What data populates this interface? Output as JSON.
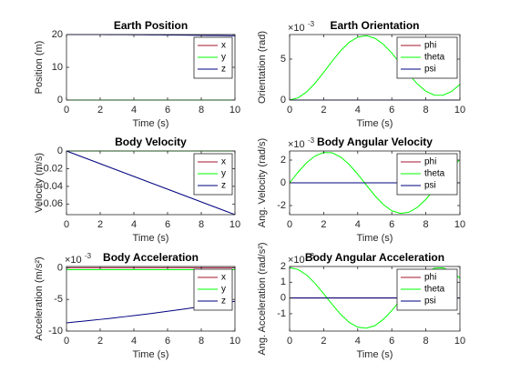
{
  "chart_data": [
    {
      "type": "line",
      "title": "Earth Position",
      "xlabel": "Time (s)",
      "ylabel": "Position (m)",
      "x": [
        0,
        0.5,
        1,
        1.5,
        2,
        2.5,
        3,
        3.5,
        4,
        4.5,
        5,
        5.5,
        6,
        6.5,
        7,
        7.5,
        8,
        8.5,
        9,
        9.5,
        10
      ],
      "xlim": [
        0,
        10
      ],
      "xticks": [
        0,
        2,
        4,
        6,
        8,
        10
      ],
      "ylim": [
        0,
        20
      ],
      "yticks": [
        0,
        10,
        20
      ],
      "legend": "northeast",
      "series": [
        {
          "name": "x",
          "color": "#a2142f",
          "values": [
            0,
            0,
            0,
            0,
            0,
            0,
            0,
            0,
            0,
            0,
            0,
            0,
            0,
            0,
            0,
            0,
            0,
            0,
            0,
            0,
            0
          ]
        },
        {
          "name": "y",
          "color": "#00ff00",
          "values": [
            0,
            0,
            0,
            0,
            0,
            0,
            0,
            0,
            0,
            0,
            0,
            0,
            0,
            0,
            0,
            0,
            0,
            0,
            0,
            0,
            0
          ]
        },
        {
          "name": "z",
          "color": "#000080",
          "values": [
            20,
            19.999,
            19.996,
            19.992,
            19.986,
            19.978,
            19.968,
            19.956,
            19.942,
            19.927,
            19.91,
            19.891,
            19.87,
            19.848,
            19.824,
            19.798,
            19.77,
            19.74,
            19.708,
            19.675,
            19.64
          ]
        }
      ]
    },
    {
      "type": "line",
      "title": "Earth Orientation",
      "xlabel": "Time (s)",
      "ylabel": "Orientation (rad)",
      "y_multiplier": {
        "base": "×10",
        "exponent": "-3"
      },
      "x": [
        0,
        0.5,
        1,
        1.5,
        2,
        2.5,
        3,
        3.5,
        4,
        4.5,
        5,
        5.5,
        6,
        6.5,
        7,
        7.5,
        8,
        8.5,
        9,
        9.5,
        10
      ],
      "xlim": [
        0,
        10
      ],
      "xticks": [
        0,
        2,
        4,
        6,
        8,
        10
      ],
      "ylim": [
        0,
        0.008
      ],
      "yticks": [
        0,
        {
          "value": 0.005,
          "label": "5"
        }
      ],
      "legend": "northeast",
      "series": [
        {
          "name": "phi",
          "color": "#a2142f",
          "values": [
            0,
            0,
            0,
            0,
            0,
            0,
            0,
            0,
            0,
            0,
            0,
            0,
            0,
            0,
            0,
            0,
            0,
            0,
            0,
            0,
            0
          ]
        },
        {
          "name": "theta",
          "color": "#00ff00",
          "values": [
            0,
            0.00027,
            0.00099,
            0.00207,
            0.00338,
            0.00476,
            0.00603,
            0.00706,
            0.00768,
            0.00786,
            0.00756,
            0.00682,
            0.00574,
            0.00446,
            0.00315,
            0.00197,
            0.00108,
            0.0006,
            0.00059,
            0.00103,
            0.00191
          ]
        },
        {
          "name": "psi",
          "color": "#000080",
          "values": [
            0,
            0,
            0,
            0,
            0,
            0,
            0,
            0,
            0,
            0,
            0,
            0,
            0,
            0,
            0,
            0,
            0,
            0,
            0,
            0,
            0
          ]
        }
      ]
    },
    {
      "type": "line",
      "title": "Body Velocity",
      "xlabel": "Time (s)",
      "ylabel": "Velocity (m/s)",
      "x": [
        0,
        0.5,
        1,
        1.5,
        2,
        2.5,
        3,
        3.5,
        4,
        4.5,
        5,
        5.5,
        6,
        6.5,
        7,
        7.5,
        8,
        8.5,
        9,
        9.5,
        10
      ],
      "xlim": [
        0,
        10
      ],
      "xticks": [
        0,
        2,
        4,
        6,
        8,
        10
      ],
      "ylim": [
        -0.072,
        0
      ],
      "yticks": [
        -0.06,
        -0.04,
        -0.02,
        0
      ],
      "legend": "northeast",
      "series": [
        {
          "name": "x",
          "color": "#a2142f",
          "values": [
            0,
            0,
            0,
            0,
            0,
            0,
            0,
            0,
            0,
            0,
            0,
            0,
            0,
            0,
            0,
            0,
            0,
            0,
            0,
            0,
            0
          ]
        },
        {
          "name": "y",
          "color": "#00ff00",
          "values": [
            0,
            0,
            0,
            0,
            0,
            0,
            0,
            0,
            0,
            0,
            0,
            0,
            0,
            0,
            0,
            0,
            0,
            0,
            0,
            0,
            0
          ]
        },
        {
          "name": "z",
          "color": "#000080",
          "values": [
            0,
            -0.0036,
            -0.0072,
            -0.0108,
            -0.0144,
            -0.018,
            -0.0216,
            -0.0252,
            -0.0288,
            -0.0324,
            -0.036,
            -0.0396,
            -0.0432,
            -0.0468,
            -0.0504,
            -0.054,
            -0.0576,
            -0.0612,
            -0.0648,
            -0.0684,
            -0.072
          ]
        }
      ]
    },
    {
      "type": "line",
      "title": "Body Angular Velocity",
      "xlabel": "Time (s)",
      "ylabel": "Ang. Velocity (rad/s)",
      "y_multiplier": {
        "base": "×10",
        "exponent": "-3"
      },
      "x": [
        0,
        0.5,
        1,
        1.5,
        2,
        2.5,
        3,
        3.5,
        4,
        4.5,
        5,
        5.5,
        6,
        6.5,
        7,
        7.5,
        8,
        8.5,
        9,
        9.5,
        10
      ],
      "xlim": [
        0,
        10
      ],
      "xticks": [
        0,
        2,
        4,
        6,
        8,
        10
      ],
      "ylim": [
        -0.0028,
        0.0028
      ],
      "yticks": [
        {
          "value": -0.002,
          "label": "-2"
        },
        0,
        {
          "value": 0.002,
          "label": "2"
        }
      ],
      "legend": "northeast",
      "series": [
        {
          "name": "phi",
          "color": "#a2142f",
          "values": [
            0,
            0,
            0,
            0,
            0,
            0,
            0,
            0,
            0,
            0,
            0,
            0,
            0,
            0,
            0,
            0,
            0,
            0,
            0,
            0,
            0
          ]
        },
        {
          "name": "theta",
          "color": "#00ff00",
          "values": [
            0,
            0.00094,
            0.00177,
            0.00237,
            0.00267,
            0.00264,
            0.00227,
            0.00161,
            0.00076,
            -0.00019,
            -0.00112,
            -0.00191,
            -0.00246,
            -0.00269,
            -0.00259,
            -0.00216,
            -0.00146,
            -0.00058,
            0.00039,
            0.00129,
            0.00204
          ]
        },
        {
          "name": "psi",
          "color": "#000080",
          "values": [
            0,
            0,
            0,
            0,
            0,
            0,
            0,
            0,
            0,
            0,
            0,
            0,
            0,
            0,
            0,
            0,
            0,
            0,
            0,
            0,
            0
          ]
        }
      ]
    },
    {
      "type": "line",
      "title": "Body Acceleration",
      "xlabel": "Time (s)",
      "ylabel": "Acceleration (m/s²)",
      "y_multiplier": {
        "base": "×10",
        "exponent": "-3"
      },
      "x": [
        0,
        0.5,
        1,
        1.5,
        2,
        2.5,
        3,
        3.5,
        4,
        4.5,
        5,
        5.5,
        6,
        6.5,
        7,
        7.5,
        8,
        8.5,
        9,
        9.5,
        10
      ],
      "xlim": [
        0,
        10
      ],
      "xticks": [
        0,
        2,
        4,
        6,
        8,
        10
      ],
      "ylim": [
        -0.01,
        0.0002
      ],
      "yticks": [
        {
          "value": -0.01,
          "label": "-10"
        },
        {
          "value": -0.005,
          "label": "-5"
        },
        0
      ],
      "legend": "northeast",
      "series": [
        {
          "name": "x",
          "color": "#a2142f",
          "values": [
            0,
            0,
            0,
            0,
            0,
            0,
            0,
            0,
            0,
            0,
            0,
            0,
            0,
            0,
            0,
            0,
            0,
            0,
            0,
            0,
            0
          ]
        },
        {
          "name": "y",
          "color": "#00ff00",
          "values": [
            -0.0003,
            -0.0003,
            -0.0003,
            -0.0003,
            -0.0003,
            -0.0003,
            -0.0003,
            -0.0003,
            -0.0003,
            -0.0003,
            -0.0003,
            -0.0003,
            -0.0003,
            -0.0003,
            -0.0003,
            -0.0003,
            -0.0003,
            -0.0003,
            -0.0003,
            -0.0003,
            -0.0003
          ]
        },
        {
          "name": "z",
          "color": "#000080",
          "values": [
            -0.0087,
            -0.00857,
            -0.00844,
            -0.0083,
            -0.00816,
            -0.00802,
            -0.00787,
            -0.00771,
            -0.00756,
            -0.00739,
            -0.00723,
            -0.00705,
            -0.00688,
            -0.00669,
            -0.00651,
            -0.00632,
            -0.00612,
            -0.00592,
            -0.00572,
            -0.00551,
            -0.0053
          ]
        }
      ]
    },
    {
      "type": "line",
      "title": "Body Angular Acceleration",
      "xlabel": "Time (s)",
      "ylabel": "Ang. Acceleration (rad/s²)",
      "y_multiplier": {
        "base": "×10",
        "exponent": "-3"
      },
      "x": [
        0,
        0.5,
        1,
        1.5,
        2,
        2.5,
        3,
        3.5,
        4,
        4.5,
        5,
        5.5,
        6,
        6.5,
        7,
        7.5,
        8,
        8.5,
        9,
        9.5,
        10
      ],
      "xlim": [
        0,
        10
      ],
      "xticks": [
        0,
        2,
        4,
        6,
        8,
        10
      ],
      "ylim": [
        -0.0021,
        0.002
      ],
      "yticks": [
        {
          "value": -0.001,
          "label": "-1"
        },
        0,
        {
          "value": 0.001,
          "label": "1"
        },
        {
          "value": 0.002,
          "label": "2"
        }
      ],
      "legend": "northeast",
      "series": [
        {
          "name": "phi",
          "color": "#a2142f",
          "values": [
            0,
            0,
            0,
            0,
            0,
            0,
            0,
            0,
            0,
            0,
            0,
            0,
            0,
            0,
            0,
            0,
            0,
            0,
            0,
            0,
            0
          ]
        },
        {
          "name": "theta",
          "color": "#00ff00",
          "values": [
            0.00193,
            0.00181,
            0.00146,
            0.00092,
            0.00027,
            -0.00041,
            -0.00104,
            -0.00155,
            -0.00185,
            -0.00192,
            -0.00176,
            -0.00136,
            -0.0008,
            -0.00014,
            0.00054,
            0.00116,
            0.00162,
            0.00189,
            0.00191,
            0.0017,
            0.00126
          ]
        },
        {
          "name": "psi",
          "color": "#000080",
          "values": [
            0,
            0,
            0,
            0,
            0,
            0,
            0,
            0,
            0,
            0,
            0,
            0,
            0,
            0,
            0,
            0,
            0,
            0,
            0,
            0,
            0
          ]
        }
      ]
    }
  ]
}
